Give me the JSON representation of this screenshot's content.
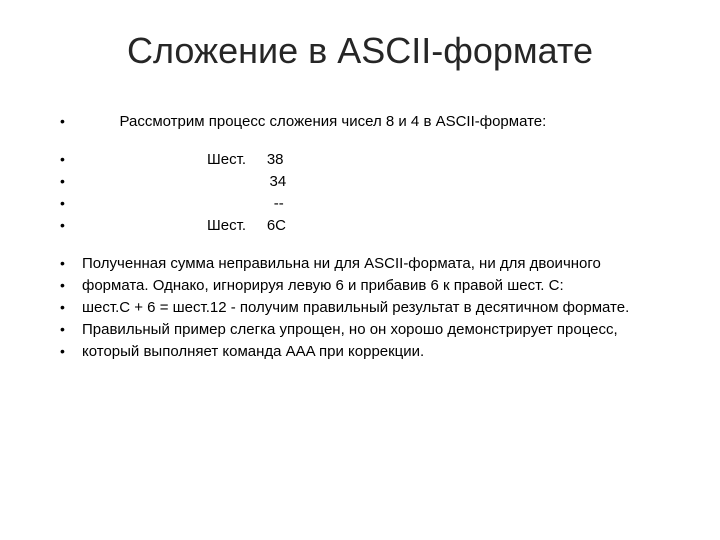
{
  "slide": {
    "title": "Сложение в ASCII-формате",
    "lines": [
      {
        "text": "         Рассмотрим процесс сложения чисел 8 и 4 в ASCII-формате:",
        "spacer_before": false,
        "justify": false
      },
      {
        "text": "                              Шест.     38",
        "spacer_before": true,
        "justify": false
      },
      {
        "text": "                                             34",
        "spacer_before": false,
        "justify": false
      },
      {
        "text": "                                              --",
        "spacer_before": false,
        "justify": false
      },
      {
        "text": "                              Шест.     6C",
        "spacer_before": false,
        "justify": false
      },
      {
        "text": "Полученная сумма  неправильна  ни  для  ASCII-формата,  ни  для  двоичного",
        "spacer_before": true,
        "justify": true
      },
      {
        "text": "формата.   Однако,  игнорируя  левую 6 и прибавив 6  к правой шест. C:",
        "spacer_before": false,
        "justify": true
      },
      {
        "text": "шест.C + 6  =  шест.12  -  получим  правильный  результат  в  десятичном формате.",
        "spacer_before": false,
        "justify": true
      },
      {
        "text": "Правильный  пример слегка упрощен,   но   он   хорошо   демонстрирует   процесс,",
        "spacer_before": false,
        "justify": true
      },
      {
        "text": "который выполняет команда AAA при коррекции.",
        "spacer_before": false,
        "justify": false
      }
    ]
  },
  "styling": {
    "background_color": "#ffffff",
    "text_color": "#000000",
    "title_fontsize": 36,
    "body_fontsize": 15,
    "font_family": "Arial",
    "bullet_char": "•"
  }
}
